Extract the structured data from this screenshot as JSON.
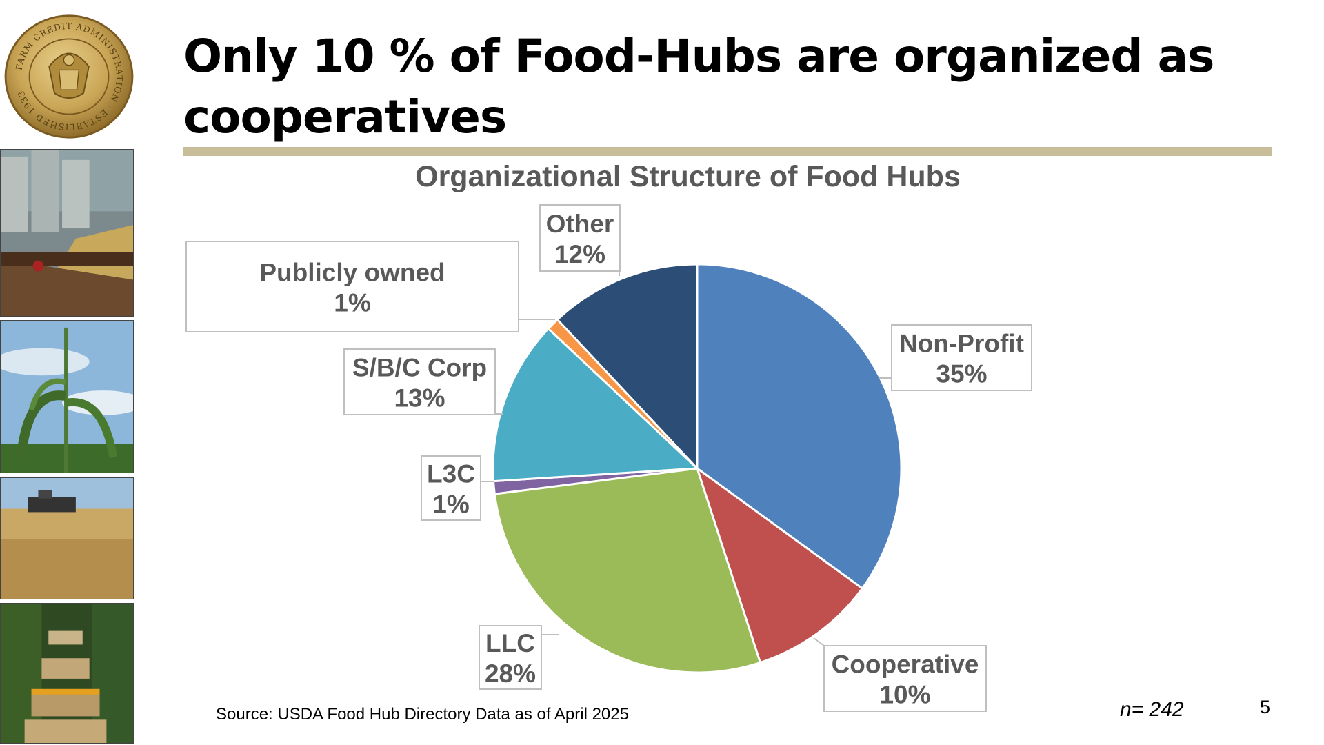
{
  "slide": {
    "title": "Only 10 % of Food-Hubs are organized as cooperatives",
    "source": "Source: USDA Food Hub Directory Data as of April 2025",
    "sample_size": "n= 242",
    "page_number": "5",
    "seal_text": "FARM CREDIT ADMINISTRATION · ESTABLISHED 1933",
    "accent_color": "#c7bd98"
  },
  "chart_data": {
    "type": "pie",
    "title": "Organizational Structure of Food Hubs",
    "start_angle": 0,
    "direction": "clockwise",
    "slices": [
      {
        "label": "Non-Profit",
        "value": 35,
        "display": "35%",
        "color": "#4f81bd"
      },
      {
        "label": "Cooperative",
        "value": 10,
        "display": "10%",
        "color": "#c0504d"
      },
      {
        "label": "LLC",
        "value": 28,
        "display": "28%",
        "color": "#9bbb59"
      },
      {
        "label": "L3C",
        "value": 1,
        "display": "1%",
        "color": "#8064a2"
      },
      {
        "label": "S/B/C Corp",
        "value": 13,
        "display": "13%",
        "color": "#4bacc6"
      },
      {
        "label": "Publicly owned",
        "value": 1,
        "display": "1%",
        "color": "#f79646"
      },
      {
        "label": "Other",
        "value": 12,
        "display": "12%",
        "color": "#2c4d75"
      }
    ]
  }
}
